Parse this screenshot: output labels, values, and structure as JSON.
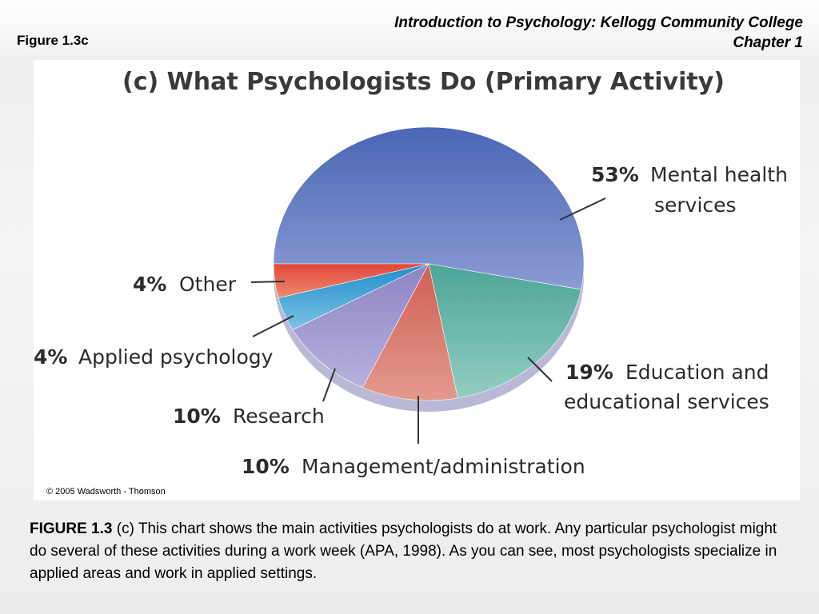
{
  "slide": {
    "figure_label": "Figure 1.3c",
    "course_title": "Introduction to Psychology: Kellogg Community College",
    "chapter": "Chapter 1"
  },
  "copyright": "© 2005 Wadsworth - Thomson",
  "caption": {
    "lead": "FIGURE 1.3",
    "text": " (c) This chart shows the main activities psychologists do at work. Any particular psychologist might do several of these activities during a work week (APA, 1998). As you can see, most psychologists specialize in applied areas and work in applied settings."
  },
  "chart_data": {
    "type": "pie",
    "title": "(c) What Psychologists Do (Primary Activity)",
    "slices": [
      {
        "label": "Mental health services",
        "label_lines": [
          "Mental health",
          "services"
        ],
        "value": 53,
        "pct_text": "53%",
        "color": "#5b74bf"
      },
      {
        "label": "Education and educational services",
        "label_lines": [
          "Education and",
          "educational services"
        ],
        "value": 19,
        "pct_text": "19%",
        "color": "#5fb3a6"
      },
      {
        "label": "Management/administration",
        "label_lines": [
          "Management/administration"
        ],
        "value": 10,
        "pct_text": "10%",
        "color": "#d9776b"
      },
      {
        "label": "Research",
        "label_lines": [
          "Research"
        ],
        "value": 10,
        "pct_text": "10%",
        "color": "#9b93cc"
      },
      {
        "label": "Applied psychology",
        "label_lines": [
          "Applied psychology"
        ],
        "value": 4,
        "pct_text": "4%",
        "color": "#3aa0d0"
      },
      {
        "label": "Other",
        "label_lines": [
          "Other"
        ],
        "value": 4,
        "pct_text": "4%",
        "color": "#e0503e"
      }
    ]
  }
}
